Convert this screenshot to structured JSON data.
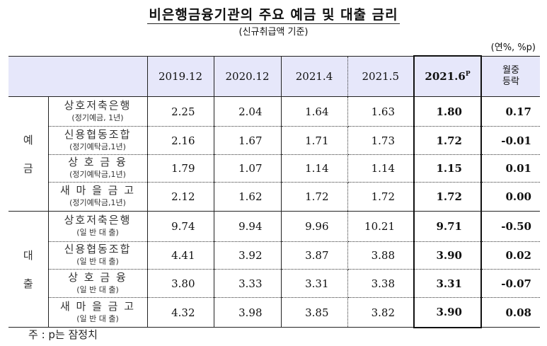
{
  "title": "비은행금융기관의 주요 예금 및 대출 금리",
  "subtitle": "(신규취급액 기준)",
  "unit": "(연%, %p)",
  "header": {
    "columns": [
      "2019.12",
      "2020.12",
      "2021.4",
      "2021.5",
      "2021.6"
    ],
    "highlight_sup": "P",
    "change_line1": "월중",
    "change_line2": "등락"
  },
  "groups": [
    {
      "category_chars": [
        "예",
        "금"
      ],
      "rows": [
        {
          "name": "상호저축은행",
          "sub": "(정기예금, 1년)",
          "values": [
            "2.25",
            "2.04",
            "1.64",
            "1.63"
          ],
          "latest": "1.80",
          "change": "0.17"
        },
        {
          "name": "신용협동조합",
          "sub": "(정기예탁금,1년)",
          "values": [
            "2.16",
            "1.67",
            "1.71",
            "1.73"
          ],
          "latest": "1.72",
          "change": "-0.01"
        },
        {
          "name": "상 호  금 융",
          "sub": "(정기예탁금,1년)",
          "values": [
            "1.79",
            "1.07",
            "1.14",
            "1.14"
          ],
          "latest": "1.15",
          "change": "0.01"
        },
        {
          "name": "새 마 을 금 고",
          "sub": "(정기예탁금,1년)",
          "values": [
            "2.12",
            "1.62",
            "1.72",
            "1.72"
          ],
          "latest": "1.72",
          "change": "0.00"
        }
      ]
    },
    {
      "category_chars": [
        "대",
        "출"
      ],
      "rows": [
        {
          "name": "상호저축은행",
          "sub": "(일 반 대 출)",
          "values": [
            "9.74",
            "9.94",
            "9.96",
            "10.21"
          ],
          "latest": "9.71",
          "change": "-0.50"
        },
        {
          "name": "신용협동조합",
          "sub": "(일 반 대 출)",
          "values": [
            "4.41",
            "3.92",
            "3.87",
            "3.88"
          ],
          "latest": "3.90",
          "change": "0.02"
        },
        {
          "name": "상 호  금 융",
          "sub": "(일 반 대 출)",
          "values": [
            "3.80",
            "3.33",
            "3.31",
            "3.38"
          ],
          "latest": "3.31",
          "change": "-0.07"
        },
        {
          "name": "새 마 을 금 고",
          "sub": "(일 반 대 출)",
          "values": [
            "4.32",
            "3.98",
            "3.85",
            "3.82"
          ],
          "latest": "3.90",
          "change": "0.08"
        }
      ]
    }
  ],
  "note": "주 : p는 잠정치",
  "colors": {
    "header_bg": "#e6e7fa",
    "border": "#222222"
  }
}
